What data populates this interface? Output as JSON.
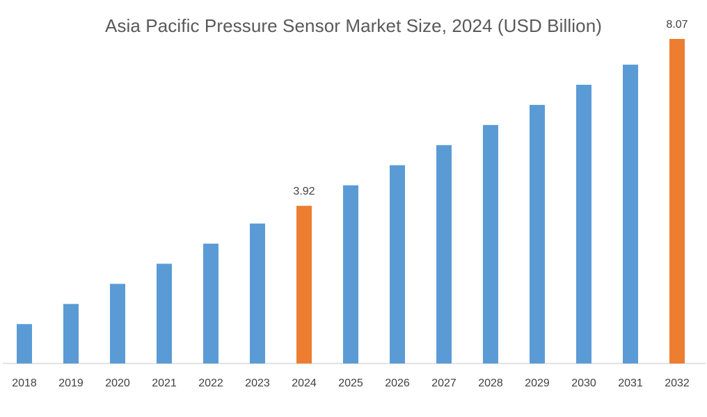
{
  "chart_data": {
    "type": "bar",
    "title": "Asia Pacific Pressure Sensor Market Size, 2024 (USD Billion)",
    "xlabel": "",
    "ylabel": "",
    "categories": [
      "2018",
      "2019",
      "2020",
      "2021",
      "2022",
      "2023",
      "2024",
      "2025",
      "2026",
      "2027",
      "2028",
      "2029",
      "2030",
      "2031",
      "2032"
    ],
    "values": [
      0.98,
      1.48,
      1.98,
      2.48,
      2.98,
      3.48,
      3.92,
      4.43,
      4.93,
      5.43,
      5.93,
      6.43,
      6.93,
      7.43,
      8.07
    ],
    "highlighted": [
      "2024",
      "2032"
    ],
    "data_labels": {
      "2024": "3.92",
      "2032": "8.07"
    },
    "colors": {
      "default": "#5b9bd5",
      "highlight": "#ed7d31"
    },
    "ylim": [
      0,
      8.07
    ],
    "grid": false,
    "legend": "none"
  }
}
